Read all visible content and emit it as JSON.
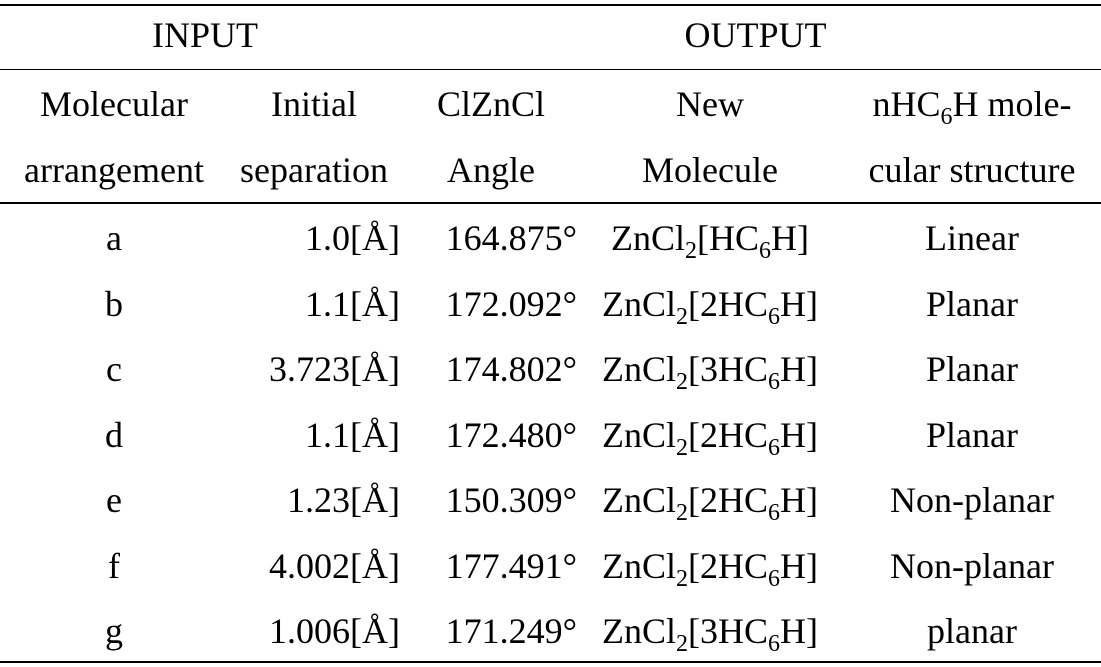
{
  "header": {
    "group_input": "INPUT",
    "group_output": "OUTPUT",
    "col1_line1": "Molecular",
    "col1_line2": "arrangement",
    "col2_line1": "Initial",
    "col2_line2": "separation",
    "col3_line1": "ClZnCl",
    "col3_line2": "Angle",
    "col4_line1": "New",
    "col4_line2": "Molecule",
    "col5_line1_pre": "nHC",
    "col5_line1_sub": "6",
    "col5_line1_post": "H mole-",
    "col5_line2": "cular structure"
  },
  "rows": [
    {
      "arrangement": "a",
      "separation": "1.0[Å]",
      "angle": "164.875°",
      "mol_pre": "ZnCl",
      "mol_sub1": "2",
      "mol_mid": "[HC",
      "mol_sub2": "6",
      "mol_post": "H]",
      "structure": "Linear"
    },
    {
      "arrangement": "b",
      "separation": "1.1[Å]",
      "angle": "172.092°",
      "mol_pre": "ZnCl",
      "mol_sub1": "2",
      "mol_mid": "[2HC",
      "mol_sub2": "6",
      "mol_post": "H]",
      "structure": "Planar"
    },
    {
      "arrangement": "c",
      "separation": "3.723[Å]",
      "angle": "174.802°",
      "mol_pre": "ZnCl",
      "mol_sub1": "2",
      "mol_mid": "[3HC",
      "mol_sub2": "6",
      "mol_post": "H]",
      "structure": "Planar"
    },
    {
      "arrangement": "d",
      "separation": "1.1[Å]",
      "angle": "172.480°",
      "mol_pre": "ZnCl",
      "mol_sub1": "2",
      "mol_mid": "[2HC",
      "mol_sub2": "6",
      "mol_post": "H]",
      "structure": "Planar"
    },
    {
      "arrangement": "e",
      "separation": "1.23[Å]",
      "angle": "150.309°",
      "mol_pre": "ZnCl",
      "mol_sub1": "2",
      "mol_mid": "[2HC",
      "mol_sub2": "6",
      "mol_post": "H]",
      "structure": "Non-planar"
    },
    {
      "arrangement": "f",
      "separation": "4.002[Å]",
      "angle": "177.491°",
      "mol_pre": "ZnCl",
      "mol_sub1": "2",
      "mol_mid": "[2HC",
      "mol_sub2": "6",
      "mol_post": "H]",
      "structure": "Non-planar"
    },
    {
      "arrangement": "g",
      "separation": "1.006[Å]",
      "angle": "171.249°",
      "mol_pre": "ZnCl",
      "mol_sub1": "2",
      "mol_mid": "[3HC",
      "mol_sub2": "6",
      "mol_post": "H]",
      "structure": "planar"
    }
  ]
}
